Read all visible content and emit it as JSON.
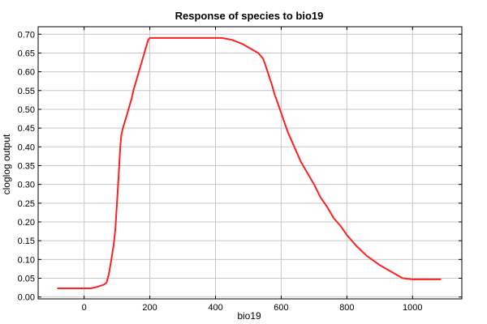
{
  "chart_data": {
    "type": "line",
    "title": "Response of species to bio19",
    "xlabel": "bio19",
    "ylabel": "cloglog output",
    "xlim": [
      -140,
      1150
    ],
    "ylim": [
      -0.005,
      0.72
    ],
    "x_ticks": [
      0,
      200,
      400,
      600,
      800,
      1000
    ],
    "y_ticks": [
      0.0,
      0.05,
      0.1,
      0.15,
      0.2,
      0.25,
      0.3,
      0.35,
      0.4,
      0.45,
      0.5,
      0.55,
      0.6,
      0.65,
      0.7
    ],
    "grid": true,
    "series": [
      {
        "color": "#ff2020",
        "x": [
          -80,
          20,
          40,
          60,
          68,
          75,
          82,
          90,
          95,
          100,
          105,
          110,
          113,
          118,
          125,
          135,
          145,
          150,
          160,
          170,
          180,
          190,
          195,
          200,
          210,
          250,
          300,
          350,
          400,
          420,
          450,
          480,
          510,
          530,
          545,
          555,
          570,
          580,
          590,
          600,
          620,
          640,
          660,
          680,
          700,
          720,
          740,
          760,
          780,
          800,
          830,
          860,
          900,
          940,
          970,
          1000,
          1050,
          1085
        ],
        "y": [
          0.023,
          0.023,
          0.027,
          0.033,
          0.038,
          0.06,
          0.095,
          0.14,
          0.18,
          0.25,
          0.32,
          0.4,
          0.43,
          0.45,
          0.47,
          0.5,
          0.53,
          0.55,
          0.58,
          0.61,
          0.64,
          0.67,
          0.685,
          0.69,
          0.69,
          0.69,
          0.69,
          0.69,
          0.69,
          0.69,
          0.685,
          0.675,
          0.66,
          0.65,
          0.635,
          0.61,
          0.57,
          0.54,
          0.515,
          0.49,
          0.44,
          0.4,
          0.36,
          0.33,
          0.3,
          0.265,
          0.24,
          0.21,
          0.19,
          0.165,
          0.135,
          0.11,
          0.085,
          0.065,
          0.05,
          0.047,
          0.047,
          0.047
        ]
      }
    ]
  }
}
